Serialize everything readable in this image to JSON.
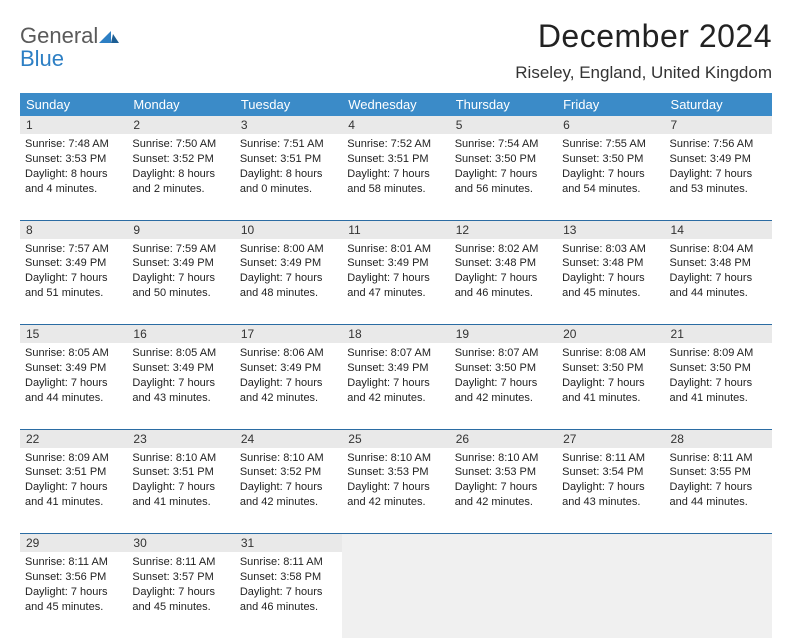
{
  "brand": {
    "general": "General",
    "blue": "Blue"
  },
  "title": "December 2024",
  "location": "Riseley, England, United Kingdom",
  "colors": {
    "header_bg": "#3b8bc8",
    "header_text": "#ffffff",
    "daynum_bg": "#e9e9e9",
    "row_divider": "#2b6ca3",
    "empty_bg": "#f0f0f0",
    "logo_gray": "#5a5a5a",
    "logo_blue": "#2d7fc4"
  },
  "weekdays": [
    "Sunday",
    "Monday",
    "Tuesday",
    "Wednesday",
    "Thursday",
    "Friday",
    "Saturday"
  ],
  "weeks": [
    {
      "nums": [
        "1",
        "2",
        "3",
        "4",
        "5",
        "6",
        "7"
      ],
      "cells": [
        {
          "sunrise": "Sunrise: 7:48 AM",
          "sunset": "Sunset: 3:53 PM",
          "day": "Daylight: 8 hours and 4 minutes."
        },
        {
          "sunrise": "Sunrise: 7:50 AM",
          "sunset": "Sunset: 3:52 PM",
          "day": "Daylight: 8 hours and 2 minutes."
        },
        {
          "sunrise": "Sunrise: 7:51 AM",
          "sunset": "Sunset: 3:51 PM",
          "day": "Daylight: 8 hours and 0 minutes."
        },
        {
          "sunrise": "Sunrise: 7:52 AM",
          "sunset": "Sunset: 3:51 PM",
          "day": "Daylight: 7 hours and 58 minutes."
        },
        {
          "sunrise": "Sunrise: 7:54 AM",
          "sunset": "Sunset: 3:50 PM",
          "day": "Daylight: 7 hours and 56 minutes."
        },
        {
          "sunrise": "Sunrise: 7:55 AM",
          "sunset": "Sunset: 3:50 PM",
          "day": "Daylight: 7 hours and 54 minutes."
        },
        {
          "sunrise": "Sunrise: 7:56 AM",
          "sunset": "Sunset: 3:49 PM",
          "day": "Daylight: 7 hours and 53 minutes."
        }
      ]
    },
    {
      "nums": [
        "8",
        "9",
        "10",
        "11",
        "12",
        "13",
        "14"
      ],
      "cells": [
        {
          "sunrise": "Sunrise: 7:57 AM",
          "sunset": "Sunset: 3:49 PM",
          "day": "Daylight: 7 hours and 51 minutes."
        },
        {
          "sunrise": "Sunrise: 7:59 AM",
          "sunset": "Sunset: 3:49 PM",
          "day": "Daylight: 7 hours and 50 minutes."
        },
        {
          "sunrise": "Sunrise: 8:00 AM",
          "sunset": "Sunset: 3:49 PM",
          "day": "Daylight: 7 hours and 48 minutes."
        },
        {
          "sunrise": "Sunrise: 8:01 AM",
          "sunset": "Sunset: 3:49 PM",
          "day": "Daylight: 7 hours and 47 minutes."
        },
        {
          "sunrise": "Sunrise: 8:02 AM",
          "sunset": "Sunset: 3:48 PM",
          "day": "Daylight: 7 hours and 46 minutes."
        },
        {
          "sunrise": "Sunrise: 8:03 AM",
          "sunset": "Sunset: 3:48 PM",
          "day": "Daylight: 7 hours and 45 minutes."
        },
        {
          "sunrise": "Sunrise: 8:04 AM",
          "sunset": "Sunset: 3:48 PM",
          "day": "Daylight: 7 hours and 44 minutes."
        }
      ]
    },
    {
      "nums": [
        "15",
        "16",
        "17",
        "18",
        "19",
        "20",
        "21"
      ],
      "cells": [
        {
          "sunrise": "Sunrise: 8:05 AM",
          "sunset": "Sunset: 3:49 PM",
          "day": "Daylight: 7 hours and 44 minutes."
        },
        {
          "sunrise": "Sunrise: 8:05 AM",
          "sunset": "Sunset: 3:49 PM",
          "day": "Daylight: 7 hours and 43 minutes."
        },
        {
          "sunrise": "Sunrise: 8:06 AM",
          "sunset": "Sunset: 3:49 PM",
          "day": "Daylight: 7 hours and 42 minutes."
        },
        {
          "sunrise": "Sunrise: 8:07 AM",
          "sunset": "Sunset: 3:49 PM",
          "day": "Daylight: 7 hours and 42 minutes."
        },
        {
          "sunrise": "Sunrise: 8:07 AM",
          "sunset": "Sunset: 3:50 PM",
          "day": "Daylight: 7 hours and 42 minutes."
        },
        {
          "sunrise": "Sunrise: 8:08 AM",
          "sunset": "Sunset: 3:50 PM",
          "day": "Daylight: 7 hours and 41 minutes."
        },
        {
          "sunrise": "Sunrise: 8:09 AM",
          "sunset": "Sunset: 3:50 PM",
          "day": "Daylight: 7 hours and 41 minutes."
        }
      ]
    },
    {
      "nums": [
        "22",
        "23",
        "24",
        "25",
        "26",
        "27",
        "28"
      ],
      "cells": [
        {
          "sunrise": "Sunrise: 8:09 AM",
          "sunset": "Sunset: 3:51 PM",
          "day": "Daylight: 7 hours and 41 minutes."
        },
        {
          "sunrise": "Sunrise: 8:10 AM",
          "sunset": "Sunset: 3:51 PM",
          "day": "Daylight: 7 hours and 41 minutes."
        },
        {
          "sunrise": "Sunrise: 8:10 AM",
          "sunset": "Sunset: 3:52 PM",
          "day": "Daylight: 7 hours and 42 minutes."
        },
        {
          "sunrise": "Sunrise: 8:10 AM",
          "sunset": "Sunset: 3:53 PM",
          "day": "Daylight: 7 hours and 42 minutes."
        },
        {
          "sunrise": "Sunrise: 8:10 AM",
          "sunset": "Sunset: 3:53 PM",
          "day": "Daylight: 7 hours and 42 minutes."
        },
        {
          "sunrise": "Sunrise: 8:11 AM",
          "sunset": "Sunset: 3:54 PM",
          "day": "Daylight: 7 hours and 43 minutes."
        },
        {
          "sunrise": "Sunrise: 8:11 AM",
          "sunset": "Sunset: 3:55 PM",
          "day": "Daylight: 7 hours and 44 minutes."
        }
      ]
    },
    {
      "nums": [
        "29",
        "30",
        "31",
        "",
        "",
        "",
        ""
      ],
      "cells": [
        {
          "sunrise": "Sunrise: 8:11 AM",
          "sunset": "Sunset: 3:56 PM",
          "day": "Daylight: 7 hours and 45 minutes."
        },
        {
          "sunrise": "Sunrise: 8:11 AM",
          "sunset": "Sunset: 3:57 PM",
          "day": "Daylight: 7 hours and 45 minutes."
        },
        {
          "sunrise": "Sunrise: 8:11 AM",
          "sunset": "Sunset: 3:58 PM",
          "day": "Daylight: 7 hours and 46 minutes."
        },
        null,
        null,
        null,
        null
      ]
    }
  ]
}
